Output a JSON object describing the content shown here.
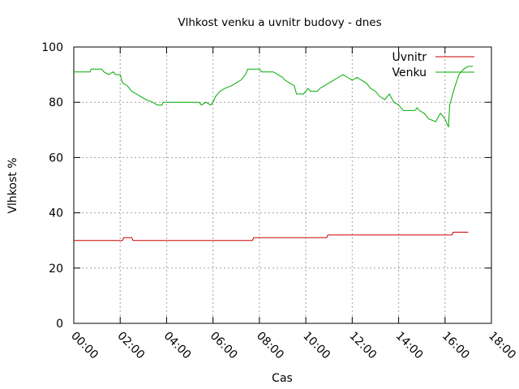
{
  "chart_data": {
    "type": "line",
    "title": "Vlhkost venku a uvnitr budovy - dnes",
    "xlabel": "Cas",
    "ylabel": "Vlhkost %",
    "xlim": [
      0,
      18
    ],
    "ylim": [
      0,
      100
    ],
    "x_ticks": [
      0,
      2,
      4,
      6,
      8,
      10,
      12,
      14,
      16,
      18
    ],
    "x_tick_labels": [
      "00:00",
      "02:00",
      "04:00",
      "06:00",
      "08:00",
      "10:00",
      "12:00",
      "14:00",
      "16:00",
      "18:00"
    ],
    "y_ticks": [
      0,
      20,
      40,
      60,
      80,
      100
    ],
    "y_tick_labels": [
      "0",
      "20",
      "40",
      "60",
      "80",
      "100"
    ],
    "grid": true,
    "legend_position": "top-right",
    "series": [
      {
        "name": "Uvnitr",
        "color": "#cc0000",
        "points": [
          [
            0,
            30
          ],
          [
            2.1,
            30
          ],
          [
            2.15,
            31
          ],
          [
            2.5,
            31
          ],
          [
            2.55,
            30
          ],
          [
            7.7,
            30
          ],
          [
            7.75,
            31
          ],
          [
            10.9,
            31
          ],
          [
            10.95,
            32
          ],
          [
            16.3,
            32
          ],
          [
            16.35,
            33
          ],
          [
            17.0,
            33
          ]
        ]
      },
      {
        "name": "Venku",
        "color": "#00aa00",
        "points": [
          [
            0,
            91
          ],
          [
            0.7,
            91
          ],
          [
            0.75,
            92
          ],
          [
            1.2,
            92
          ],
          [
            1.3,
            91
          ],
          [
            1.5,
            90
          ],
          [
            1.7,
            91
          ],
          [
            1.8,
            90
          ],
          [
            2.0,
            90
          ],
          [
            2.1,
            87
          ],
          [
            2.3,
            86
          ],
          [
            2.5,
            84
          ],
          [
            2.7,
            83
          ],
          [
            2.9,
            82
          ],
          [
            3.1,
            81
          ],
          [
            3.4,
            80
          ],
          [
            3.6,
            79
          ],
          [
            3.8,
            79
          ],
          [
            3.85,
            80
          ],
          [
            5.2,
            80
          ],
          [
            5.4,
            80
          ],
          [
            5.5,
            79
          ],
          [
            5.7,
            80
          ],
          [
            5.9,
            79
          ],
          [
            6.0,
            80
          ],
          [
            6.1,
            82
          ],
          [
            6.3,
            84
          ],
          [
            6.5,
            85
          ],
          [
            6.8,
            86
          ],
          [
            7.0,
            87
          ],
          [
            7.2,
            88
          ],
          [
            7.4,
            90
          ],
          [
            7.5,
            92
          ],
          [
            8.0,
            92
          ],
          [
            8.1,
            91
          ],
          [
            8.6,
            91
          ],
          [
            8.8,
            90
          ],
          [
            9.0,
            89
          ],
          [
            9.1,
            88
          ],
          [
            9.3,
            87
          ],
          [
            9.5,
            86
          ],
          [
            9.6,
            83
          ],
          [
            9.9,
            83
          ],
          [
            10.0,
            84
          ],
          [
            10.1,
            85
          ],
          [
            10.2,
            84
          ],
          [
            10.5,
            84
          ],
          [
            10.6,
            85
          ],
          [
            10.8,
            86
          ],
          [
            11.0,
            87
          ],
          [
            11.2,
            88
          ],
          [
            11.4,
            89
          ],
          [
            11.6,
            90
          ],
          [
            11.8,
            89
          ],
          [
            12.0,
            88
          ],
          [
            12.2,
            89
          ],
          [
            12.4,
            88
          ],
          [
            12.6,
            87
          ],
          [
            12.8,
            85
          ],
          [
            13.0,
            84
          ],
          [
            13.2,
            82
          ],
          [
            13.4,
            81
          ],
          [
            13.6,
            83
          ],
          [
            13.8,
            80
          ],
          [
            14.0,
            79
          ],
          [
            14.2,
            77
          ],
          [
            14.7,
            77
          ],
          [
            14.8,
            78
          ],
          [
            14.9,
            77
          ],
          [
            15.1,
            76
          ],
          [
            15.3,
            74
          ],
          [
            15.6,
            73
          ],
          [
            15.8,
            76
          ],
          [
            16.0,
            74
          ],
          [
            16.15,
            71
          ],
          [
            16.2,
            79
          ],
          [
            16.4,
            85
          ],
          [
            16.6,
            90
          ],
          [
            16.8,
            92
          ],
          [
            17.0,
            93
          ],
          [
            17.2,
            93
          ]
        ]
      }
    ]
  }
}
